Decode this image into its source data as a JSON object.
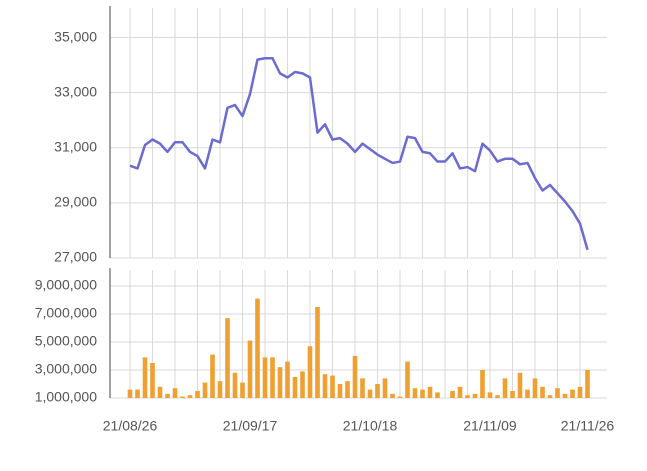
{
  "chart_data": [
    {
      "type": "line",
      "color": "#6b6bd0",
      "values": [
        30350,
        30250,
        31100,
        31300,
        31150,
        30850,
        31200,
        31200,
        30850,
        30700,
        30250,
        31300,
        31200,
        32450,
        32550,
        32150,
        32950,
        34200,
        34250,
        34250,
        33700,
        33550,
        33750,
        33700,
        33550,
        31550,
        31850,
        31300,
        31350,
        31150,
        30850,
        31150,
        30950,
        30750,
        30600,
        30450,
        30500,
        31400,
        31350,
        30850,
        30800,
        30500,
        30500,
        30800,
        30250,
        30300,
        30150,
        31150,
        30900,
        30500,
        30600,
        30600,
        30400,
        30450,
        29900,
        29450,
        29650,
        29350,
        29050,
        28700,
        28250,
        27300
      ],
      "ylim": [
        27000,
        36000
      ],
      "yticks": [
        {
          "value": 27000,
          "label": "27,000"
        },
        {
          "value": 29000,
          "label": "29,000"
        },
        {
          "value": 31000,
          "label": "31,000"
        },
        {
          "value": 33000,
          "label": "33,000"
        },
        {
          "value": 35000,
          "label": "35,000"
        }
      ],
      "grid": true
    },
    {
      "type": "bar",
      "color": "#f0a030",
      "categories": [
        "21/08/26",
        null,
        null,
        null,
        null,
        null,
        null,
        null,
        null,
        null,
        null,
        null,
        null,
        null,
        null,
        null,
        "21/09/17",
        null,
        null,
        null,
        null,
        null,
        null,
        null,
        null,
        null,
        null,
        null,
        null,
        null,
        null,
        null,
        "21/10/18",
        null,
        null,
        null,
        null,
        null,
        null,
        null,
        null,
        null,
        null,
        null,
        null,
        null,
        null,
        null,
        "21/11/09",
        null,
        null,
        null,
        null,
        null,
        null,
        null,
        null,
        null,
        null,
        null,
        null,
        "21/11/26"
      ],
      "values": [
        1600000,
        1600000,
        3900000,
        3500000,
        1800000,
        1300000,
        1700000,
        1100000,
        1200000,
        1500000,
        2100000,
        4100000,
        2200000,
        6700000,
        2800000,
        2100000,
        5100000,
        8100000,
        3900000,
        3900000,
        3200000,
        3600000,
        2500000,
        2900000,
        4700000,
        7500000,
        2700000,
        2600000,
        2000000,
        2200000,
        4000000,
        2400000,
        1600000,
        2000000,
        2400000,
        1300000,
        1100000,
        3600000,
        1700000,
        1600000,
        1800000,
        1400000,
        1000000,
        1500000,
        1800000,
        1200000,
        1300000,
        3000000,
        1400000,
        1200000,
        2400000,
        1500000,
        2800000,
        1600000,
        2400000,
        1800000,
        1200000,
        1700000,
        1300000,
        1600000,
        1800000,
        3000000
      ],
      "ylim": [
        1000000,
        10000000
      ],
      "yticks": [
        {
          "value": 1000000,
          "label": "1,000,000"
        },
        {
          "value": 3000000,
          "label": "3,000,000"
        },
        {
          "value": 5000000,
          "label": "5,000,000"
        },
        {
          "value": 7000000,
          "label": "7,000,000"
        },
        {
          "value": 9000000,
          "label": "9,000,000"
        }
      ],
      "grid": true
    }
  ]
}
